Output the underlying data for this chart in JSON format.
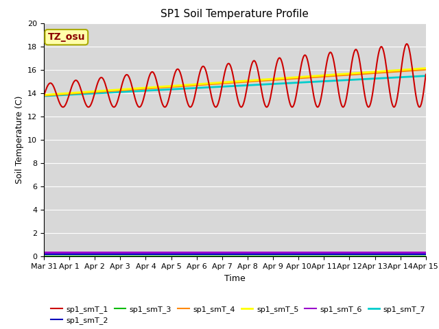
{
  "title": "SP1 Soil Temperature Profile",
  "xlabel": "Time",
  "ylabel": "Soil Temperature (C)",
  "annotation": "TZ_osu",
  "ylim": [
    0,
    20
  ],
  "yticks": [
    0,
    2,
    4,
    6,
    8,
    10,
    12,
    14,
    16,
    18,
    20
  ],
  "plot_bg_color": "#d8d8d8",
  "fig_bg_color": "#ffffff",
  "colors": {
    "sp1_smT_1": "#cc0000",
    "sp1_smT_2": "#0000bb",
    "sp1_smT_3": "#00bb00",
    "sp1_smT_4": "#ff8800",
    "sp1_smT_5": "#ffff00",
    "sp1_smT_6": "#9900cc",
    "sp1_smT_7": "#00cccc"
  },
  "x_start_day": 0,
  "x_end_day": 15.0,
  "n_points": 500,
  "series": {
    "sp1_smT_1_base": 13.8,
    "sp1_smT_1_trend": 0.12,
    "sp1_smT_1_amp_start": 1.0,
    "sp1_smT_1_amp_end": 2.8,
    "sp1_smT_4_base": 13.8,
    "sp1_smT_4_trend": 0.148,
    "sp1_smT_5_base": 13.85,
    "sp1_smT_5_trend": 0.152,
    "sp1_smT_7_base": 13.75,
    "sp1_smT_7_trend": 0.115,
    "sp1_smT_2_val": 0.18,
    "sp1_smT_3_val": 0.04,
    "sp1_smT_6_val": 0.35
  },
  "xtick_labels": [
    "Mar 31",
    "Apr 1",
    "Apr 2",
    "Apr 3",
    "Apr 4",
    "Apr 5",
    "Apr 6",
    "Apr 7",
    "Apr 8",
    "Apr 9",
    "Apr 10",
    "Apr 11",
    "Apr 12",
    "Apr 13",
    "Apr 14",
    "Apr 15"
  ],
  "xtick_positions": [
    0,
    1,
    2,
    3,
    4,
    5,
    6,
    7,
    8,
    9,
    10,
    11,
    12,
    13,
    14,
    15
  ],
  "grid_color": "#ffffff",
  "linewidth_thin": 1.5,
  "linewidth_thick": 2.0,
  "title_fontsize": 11,
  "axis_label_fontsize": 9,
  "tick_fontsize": 8,
  "legend_fontsize": 8,
  "annot_fontsize": 10,
  "annot_color": "#8B0000",
  "annot_bg": "#ffffaa",
  "annot_edge": "#aaaa00"
}
